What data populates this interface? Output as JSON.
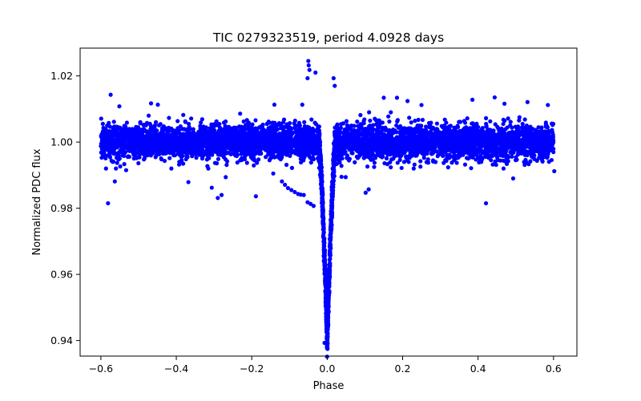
{
  "chart_data": {
    "type": "scatter",
    "title": "TIC 0279323519, period 4.0928 days",
    "xlabel": "Phase",
    "ylabel": "Normalized PDC flux",
    "xlim": [
      -0.655,
      0.662
    ],
    "ylim": [
      0.9353,
      1.0284
    ],
    "grid": false,
    "marker_color": "#0000ff",
    "x_ticks": [
      -0.6,
      -0.4,
      -0.2,
      0.0,
      0.2,
      0.4,
      0.6
    ],
    "x_tick_labels": [
      "−0.6",
      "−0.4",
      "−0.2",
      "0.0",
      "0.2",
      "0.4",
      "0.6"
    ],
    "y_ticks": [
      0.94,
      0.96,
      0.98,
      1.0,
      1.02
    ],
    "y_tick_labels": [
      "0.94",
      "0.96",
      "0.98",
      "1.00",
      "1.02"
    ],
    "series": [
      {
        "name": "PDC flux",
        "description_of_shape": "dense band around 1.000 (spread ~0.992-1.010) across phase -0.6..0.6 with a transit dip centered at phase 0.0 reaching ~0.9395",
        "baseline": 1.0,
        "noise_range": [
          0.992,
          1.009
        ],
        "transit_center": 0.0,
        "transit_min": 0.9395,
        "outlier_points": [
          {
            "x": -0.581,
            "y": 0.9815
          },
          {
            "x": -0.574,
            "y": 1.0143
          },
          {
            "x": -0.563,
            "y": 0.9881
          },
          {
            "x": -0.551,
            "y": 1.0108
          },
          {
            "x": -0.533,
            "y": 0.9915
          },
          {
            "x": -0.467,
            "y": 1.0117
          },
          {
            "x": -0.449,
            "y": 1.0113
          },
          {
            "x": -0.368,
            "y": 0.9879
          },
          {
            "x": -0.306,
            "y": 0.9862
          },
          {
            "x": -0.29,
            "y": 0.9831
          },
          {
            "x": -0.28,
            "y": 0.984
          },
          {
            "x": -0.269,
            "y": 0.9894
          },
          {
            "x": -0.189,
            "y": 0.9836
          },
          {
            "x": -0.143,
            "y": 0.9905
          },
          {
            "x": -0.14,
            "y": 1.0113
          },
          {
            "x": -0.12,
            "y": 0.9881
          },
          {
            "x": -0.112,
            "y": 0.9871
          },
          {
            "x": -0.104,
            "y": 0.9861
          },
          {
            "x": -0.095,
            "y": 0.9855
          },
          {
            "x": -0.086,
            "y": 0.9849
          },
          {
            "x": -0.077,
            "y": 0.9843
          },
          {
            "x": -0.07,
            "y": 0.9841
          },
          {
            "x": -0.062,
            "y": 0.984
          },
          {
            "x": -0.052,
            "y": 0.9818
          },
          {
            "x": -0.044,
            "y": 0.9813
          },
          {
            "x": -0.036,
            "y": 0.9807
          },
          {
            "x": -0.05,
            "y": 1.0245
          },
          {
            "x": -0.049,
            "y": 1.0232
          },
          {
            "x": -0.047,
            "y": 1.0218
          },
          {
            "x": -0.052,
            "y": 1.0193
          },
          {
            "x": -0.031,
            "y": 1.021
          },
          {
            "x": -0.066,
            "y": 1.0113
          },
          {
            "x": -0.007,
            "y": 0.9393
          },
          {
            "x": 0.0,
            "y": 0.9432
          },
          {
            "x": 0.003,
            "y": 0.9448
          },
          {
            "x": 0.017,
            "y": 1.0193
          },
          {
            "x": 0.02,
            "y": 1.017
          },
          {
            "x": 0.038,
            "y": 0.9895
          },
          {
            "x": 0.049,
            "y": 0.9894
          },
          {
            "x": 0.102,
            "y": 0.9847
          },
          {
            "x": 0.11,
            "y": 0.9857
          },
          {
            "x": 0.15,
            "y": 1.0134
          },
          {
            "x": 0.185,
            "y": 1.0134
          },
          {
            "x": 0.213,
            "y": 1.0124
          },
          {
            "x": 0.25,
            "y": 1.0112
          },
          {
            "x": 0.385,
            "y": 1.0128
          },
          {
            "x": 0.421,
            "y": 0.9815
          },
          {
            "x": 0.444,
            "y": 1.0135
          },
          {
            "x": 0.47,
            "y": 1.0116
          },
          {
            "x": 0.493,
            "y": 0.989
          },
          {
            "x": 0.531,
            "y": 1.0121
          },
          {
            "x": 0.585,
            "y": 1.0112
          },
          {
            "x": 0.602,
            "y": 0.9912
          }
        ]
      }
    ]
  }
}
